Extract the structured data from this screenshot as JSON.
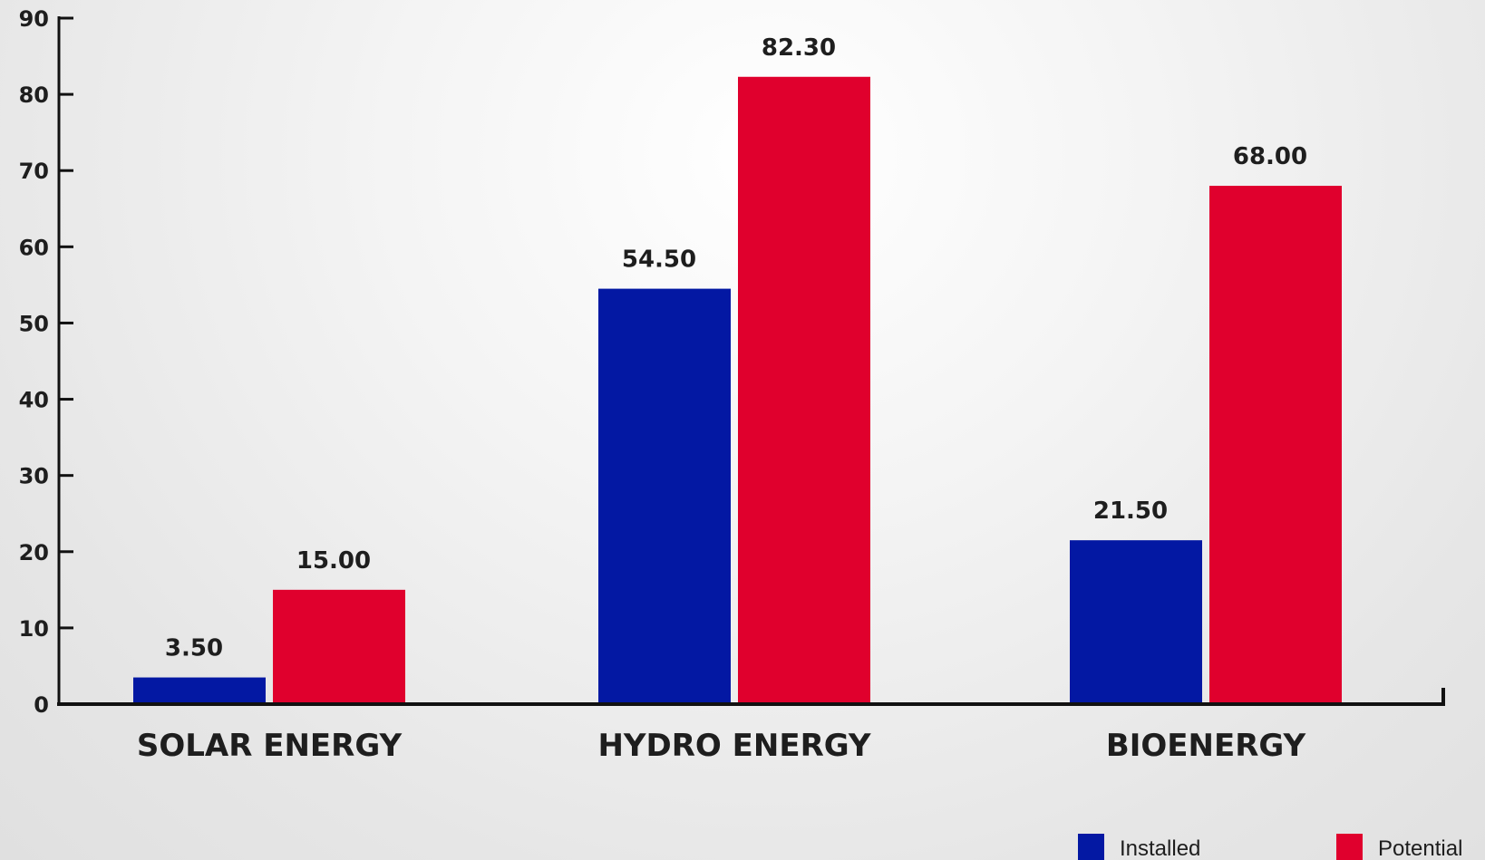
{
  "chart_data": {
    "type": "bar",
    "categories": [
      "SOLAR ENERGY",
      "HYDRO ENERGY",
      "BIOENERGY"
    ],
    "series": [
      {
        "name": "Installed",
        "values": [
          3.5,
          54.5,
          21.5
        ],
        "labels": [
          "3.50",
          "54.50",
          "21.50"
        ],
        "color": "#0318a3"
      },
      {
        "name": "Potential",
        "values": [
          15.0,
          82.3,
          68.0
        ],
        "labels": [
          "15.00",
          "82.30",
          "68.00"
        ],
        "color": "#e0002d"
      }
    ],
    "ylim": [
      0,
      90
    ],
    "yticks": [
      0,
      10,
      20,
      30,
      40,
      50,
      60,
      70,
      80,
      90
    ],
    "grid": false,
    "legend_position": "bottom-right"
  }
}
